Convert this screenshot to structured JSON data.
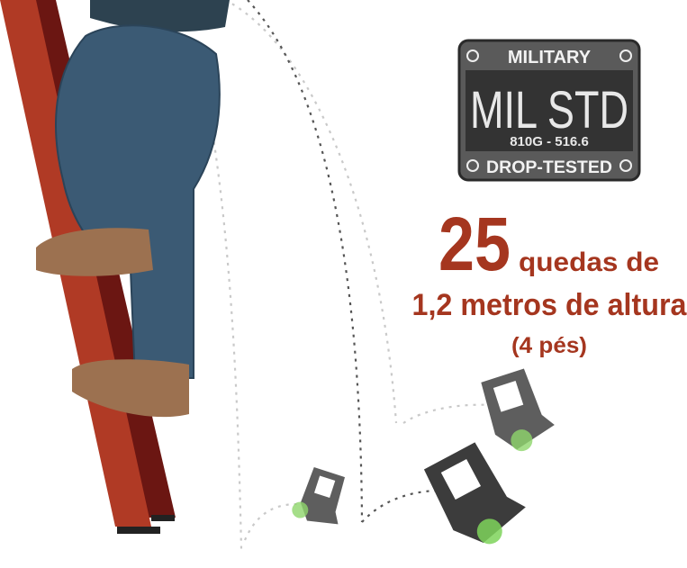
{
  "badge": {
    "top": "MILITARY",
    "main": "MIL STD",
    "code": "810G - 516.6",
    "bottom": "DROP-TESTED"
  },
  "headline": {
    "number": "25",
    "text": "quedas de",
    "line2": "1,2 metros de altura",
    "line3": "(4 pés)"
  }
}
